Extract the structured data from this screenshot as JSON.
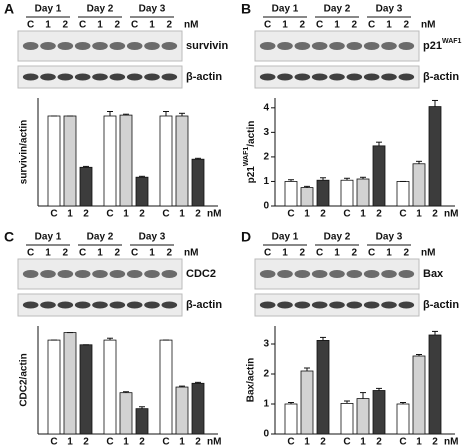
{
  "panels": [
    {
      "letter": "A",
      "days": [
        "Day 1",
        "Day 2",
        "Day 3"
      ],
      "lanes": [
        "C",
        "1",
        "2"
      ],
      "unit": "nM",
      "bands": [
        "survivin",
        "β-actin"
      ]
    },
    {
      "letter": "B",
      "days": [
        "Day 1",
        "Day 2",
        "Day 3"
      ],
      "lanes": [
        "C",
        "1",
        "2"
      ],
      "unit": "nM",
      "bands": [
        [
          "p21",
          "WAF1"
        ],
        "β-actin"
      ]
    },
    {
      "letter": "C",
      "days": [
        "Day 1",
        "Day 2",
        "Day 3"
      ],
      "lanes": [
        "C",
        "1",
        "2"
      ],
      "unit": "nM",
      "bands": [
        "CDC2",
        "β-actin"
      ]
    },
    {
      "letter": "D",
      "days": [
        "Day 1",
        "Day 2",
        "Day 3"
      ],
      "lanes": [
        "C",
        "1",
        "2"
      ],
      "unit": "nM",
      "bands": [
        "Bax",
        "β-actin"
      ]
    }
  ],
  "chart_data": [
    {
      "type": "bar",
      "ylabel": "survivin/actin",
      "categories": [
        "C",
        "1",
        "2",
        "C",
        "1",
        "2",
        "C",
        "1",
        "2"
      ],
      "x_unit": "nM",
      "values": [
        1.0,
        1.0,
        0.43,
        1.0,
        1.01,
        0.32,
        1.0,
        1.0,
        0.52
      ],
      "errors": [
        0,
        0,
        0.01,
        0.05,
        0.01,
        0.01,
        0.05,
        0.03,
        0.01
      ],
      "colors": [
        "#ffffff",
        "#d2d2d2",
        "#3c3c3c"
      ],
      "ylim": [
        0,
        1.2
      ]
    },
    {
      "type": "bar",
      "ylabel": [
        "p21",
        "WAF1",
        "/actin"
      ],
      "categories": [
        "C",
        "1",
        "2",
        "C",
        "1",
        "2",
        "C",
        "1",
        "2"
      ],
      "x_unit": "nM",
      "values": [
        1.0,
        0.75,
        1.05,
        1.05,
        1.1,
        2.45,
        1.0,
        1.72,
        4.05
      ],
      "errors": [
        0.07,
        0.05,
        0.1,
        0.08,
        0.07,
        0.15,
        0,
        0.1,
        0.25
      ],
      "colors": [
        "#ffffff",
        "#d2d2d2",
        "#3c3c3c"
      ],
      "ylim": [
        0,
        4.4
      ],
      "yticks": [
        0,
        1,
        2,
        3,
        4
      ]
    },
    {
      "type": "bar",
      "ylabel": "CDC2/actin",
      "categories": [
        "C",
        "1",
        "2",
        "C",
        "1",
        "2",
        "C",
        "1",
        "2"
      ],
      "x_unit": "nM",
      "values": [
        1.0,
        1.08,
        0.95,
        1.0,
        0.44,
        0.27,
        1.0,
        0.5,
        0.54
      ],
      "errors": [
        0,
        0,
        0,
        0.02,
        0.01,
        0.02,
        0,
        0.01,
        0.01
      ],
      "colors": [
        "#ffffff",
        "#d2d2d2",
        "#3c3c3c"
      ],
      "ylim": [
        0,
        1.15
      ]
    },
    {
      "type": "bar",
      "ylabel": "Bax/actin",
      "categories": [
        "C",
        "1",
        "2",
        "C",
        "1",
        "2",
        "C",
        "1",
        "2"
      ],
      "x_unit": "nM",
      "values": [
        1.0,
        2.1,
        3.12,
        1.02,
        1.18,
        1.45,
        1.0,
        2.6,
        3.3
      ],
      "errors": [
        0.05,
        0.1,
        0.1,
        0.08,
        0.2,
        0.07,
        0.05,
        0.05,
        0.12
      ],
      "colors": [
        "#ffffff",
        "#d2d2d2",
        "#3c3c3c"
      ],
      "ylim": [
        0,
        3.6
      ],
      "yticks": [
        0,
        1,
        2,
        3
      ]
    }
  ]
}
